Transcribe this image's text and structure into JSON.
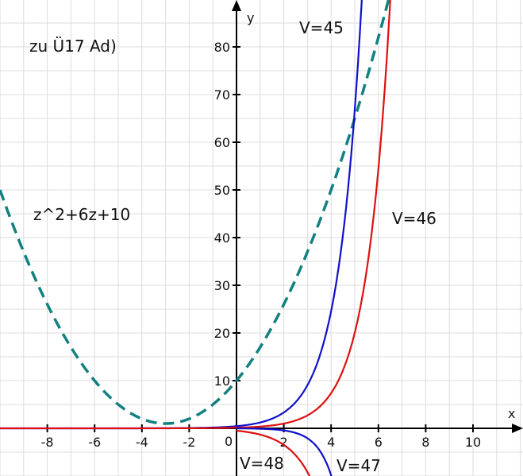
{
  "chart_data": {
    "type": "line",
    "title": "zu Ü17 Ad)",
    "xlabel": "x",
    "ylabel": "y",
    "xlim": [
      -10,
      12.1
    ],
    "ylim": [
      -10,
      89.8
    ],
    "grid": true,
    "x_grid_step": 1,
    "y_grid_step": 5,
    "x_ticks": [
      -8,
      -6,
      -4,
      -2,
      2,
      4,
      6,
      8,
      10
    ],
    "y_ticks": [
      10,
      20,
      30,
      40,
      50,
      60,
      70,
      80
    ],
    "origin_label": "0",
    "series": [
      {
        "name": "z^2+6z+10",
        "color": "#138080",
        "dashed": true,
        "model": {
          "type": "poly",
          "coeffs": [
            1,
            6,
            10
          ]
        },
        "x_range": [
          -10,
          6.5
        ]
      },
      {
        "name": "V=45",
        "color": "#1010cc",
        "dashed": false,
        "model": {
          "type": "exp",
          "a": 0.45,
          "k": 1.0
        },
        "x_range": [
          -10,
          5.4
        ]
      },
      {
        "name": "V=46",
        "color": "#dd1010",
        "dashed": false,
        "model": {
          "type": "exp",
          "a": 0.135,
          "k": 1.0
        },
        "x_range": [
          -10,
          6.6
        ]
      },
      {
        "name": "V=47",
        "color": "#1010cc",
        "dashed": false,
        "model": {
          "type": "exp",
          "a": -0.02,
          "k": 1.55
        },
        "x_range": [
          0,
          4.05
        ]
      },
      {
        "name": "V=48",
        "color": "#dd1010",
        "dashed": false,
        "model": {
          "type": "exp",
          "a": -0.5,
          "k": 0.97
        },
        "x_range": [
          0,
          3.15
        ]
      }
    ],
    "annotations": [
      {
        "id": "title",
        "text": "zu Ü17 Ad)"
      },
      {
        "id": "parabola",
        "text": "z^2+6z+10"
      },
      {
        "id": "v45",
        "text": "V=45"
      },
      {
        "id": "v46",
        "text": "V=46"
      },
      {
        "id": "v47",
        "text": "V=47"
      },
      {
        "id": "v48",
        "text": "V=48"
      }
    ]
  }
}
